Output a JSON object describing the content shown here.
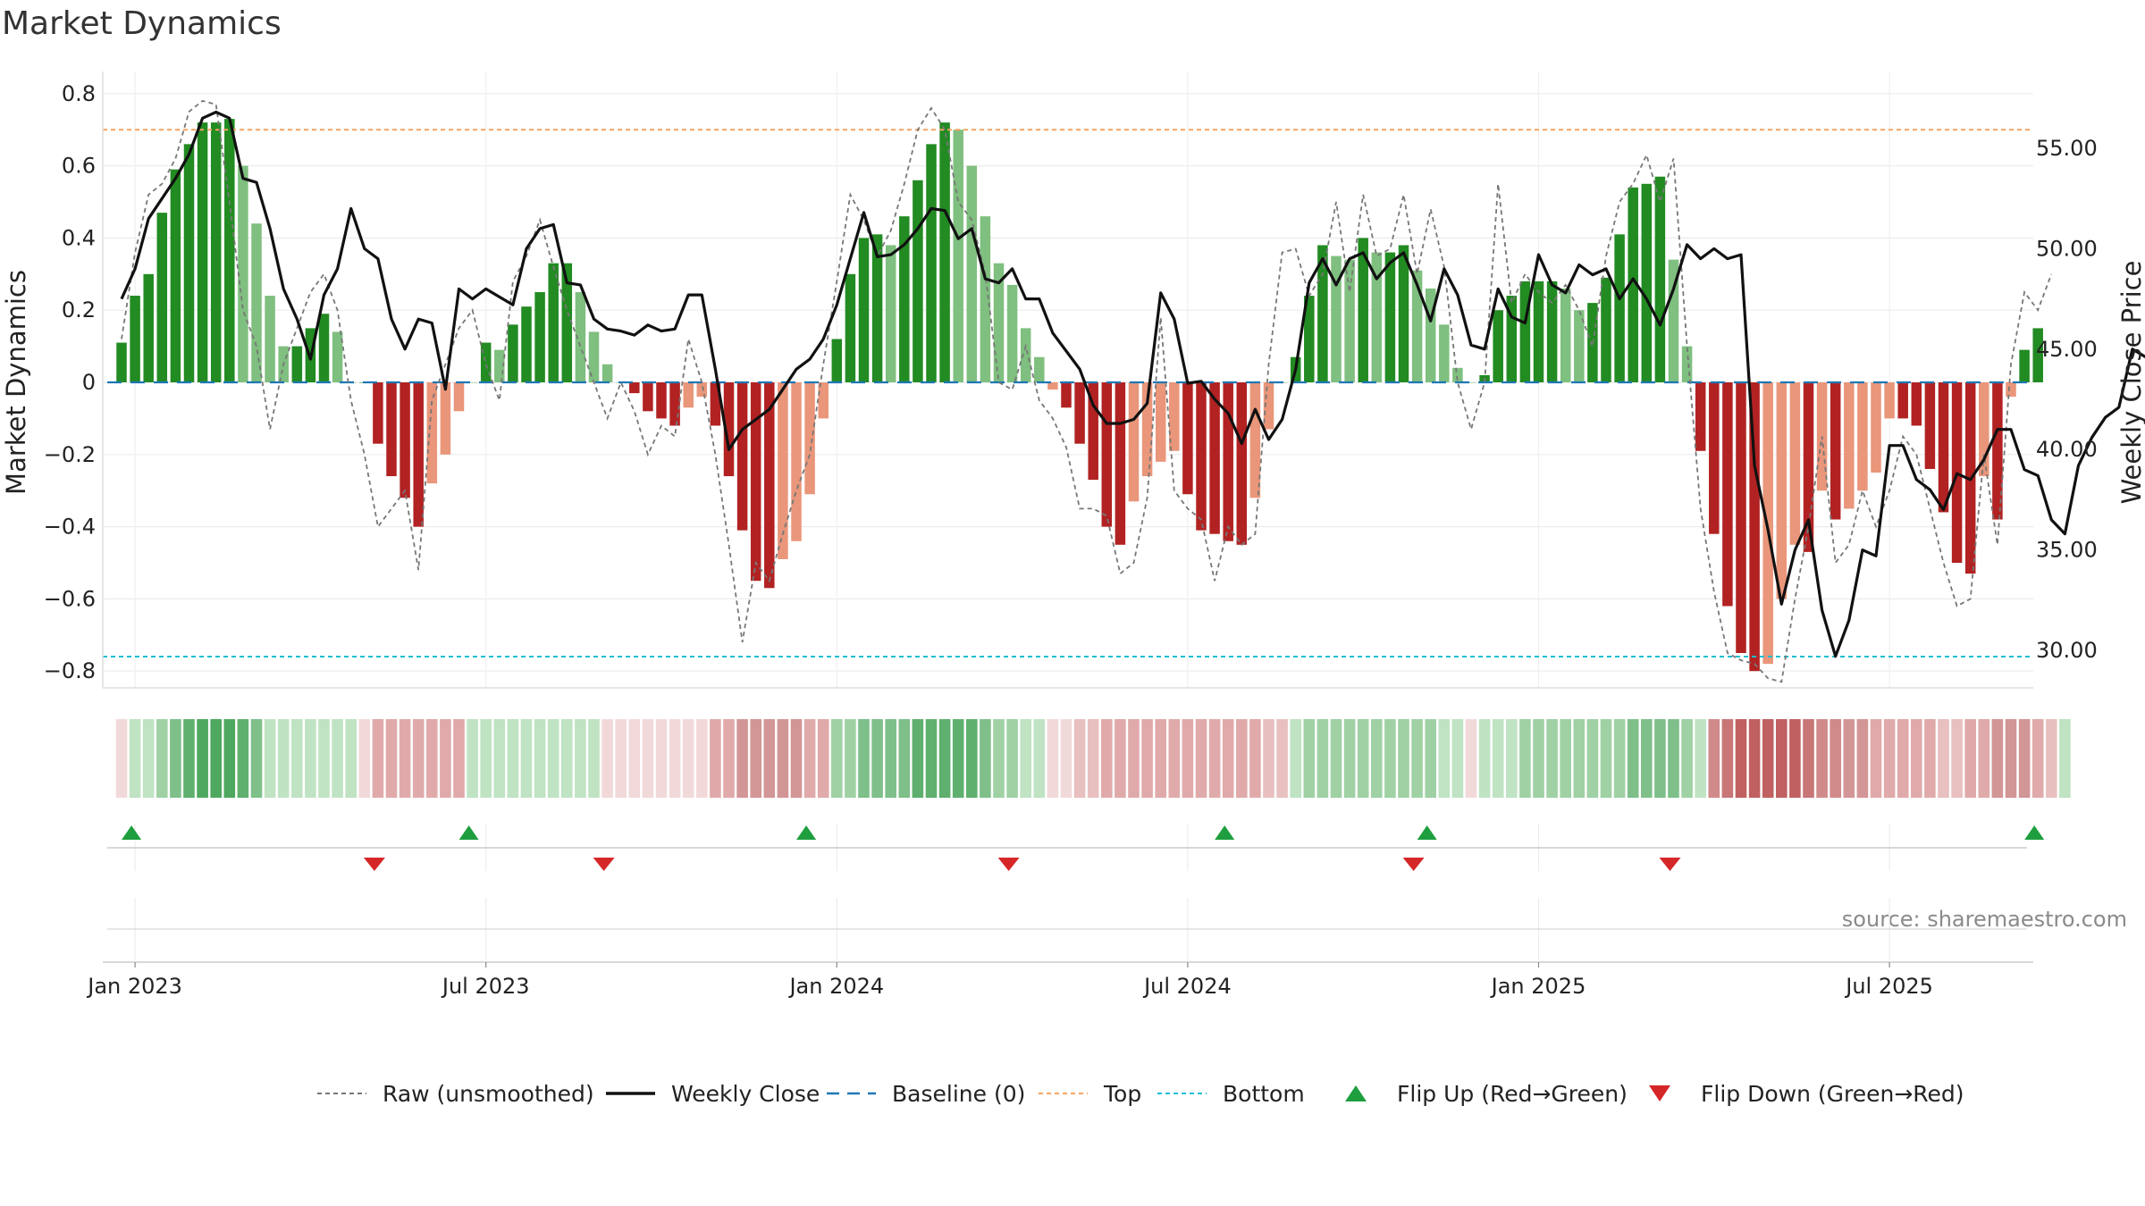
{
  "page": {
    "title": "Market Dynamics",
    "source": "source: sharemaestro.com"
  },
  "colors": {
    "green_strong": "#228B22",
    "green_light": "#7FBF7F",
    "red_strong": "#B22222",
    "red_light": "#E9967A",
    "raw": "#777777",
    "close": "#111111",
    "baseline": "#1f77b4",
    "top": "#F4A460",
    "bottom": "#17BECF",
    "flip_up": "#1E9E3E",
    "flip_down": "#D62728"
  },
  "chart_data": {
    "type": "bar",
    "title": "Market Dynamics",
    "ylabel": "Market Dynamics",
    "ylabel_right": "Weekly Close Price",
    "ylim": [
      -0.85,
      0.85
    ],
    "ylim_right": [
      27.5,
      59.2
    ],
    "y_ticks": [
      0.8,
      0.6,
      0.4,
      0.2,
      0,
      -0.2,
      -0.4,
      -0.6,
      -0.8
    ],
    "y_tick_labels": [
      "0.8",
      "0.6",
      "0.4",
      "0.2",
      "0",
      "−0.2",
      "−0.4",
      "−0.6",
      "−0.8"
    ],
    "y_right_ticks": [
      55,
      50,
      45,
      40,
      35,
      30
    ],
    "y_right_tick_labels": [
      "55.00",
      "50.00",
      "45.00",
      "40.00",
      "35.00",
      "30.00"
    ],
    "x_tick_labels": [
      "Jan 2023",
      "Jul 2023",
      "Jan 2024",
      "Jul 2024",
      "Jan 2025",
      "Jul 2025"
    ],
    "x_tick_weeks": [
      1,
      27,
      53,
      79,
      105,
      131
    ],
    "top_level": 0.7,
    "bottom_level": -0.76,
    "grid": true,
    "legend_position": "bottom",
    "legend": [
      "Raw (unsmoothed)",
      "Weekly Close",
      "Baseline (0)",
      "Top",
      "Bottom",
      "Flip Up (Red→Green)",
      "Flip Down (Green→Red)"
    ],
    "mdyn": [
      0.11,
      0.24,
      0.3,
      0.47,
      0.59,
      0.66,
      0.72,
      0.72,
      0.73,
      0.6,
      0.44,
      0.24,
      0.1,
      0.1,
      0.15,
      0.19,
      0.14,
      0,
      0,
      -0.17,
      -0.26,
      -0.32,
      -0.4,
      -0.28,
      -0.2,
      -0.08,
      0,
      0.11,
      0.09,
      0.16,
      0.21,
      0.25,
      0.33,
      0.33,
      0.25,
      0.14,
      0.05,
      0,
      -0.03,
      -0.08,
      -0.1,
      -0.12,
      -0.07,
      -0.04,
      -0.12,
      -0.26,
      -0.41,
      -0.55,
      -0.57,
      -0.49,
      -0.44,
      -0.31,
      -0.1,
      0.12,
      0.3,
      0.4,
      0.41,
      0.38,
      0.46,
      0.56,
      0.66,
      0.72,
      0.7,
      0.6,
      0.46,
      0.33,
      0.27,
      0.15,
      0.07,
      -0.02,
      -0.07,
      -0.17,
      -0.27,
      -0.4,
      -0.45,
      -0.33,
      -0.26,
      -0.22,
      -0.19,
      -0.31,
      -0.41,
      -0.42,
      -0.44,
      -0.45,
      -0.32,
      -0.13,
      0,
      0.07,
      0.24,
      0.38,
      0.35,
      0.34,
      0.4,
      0.36,
      0.36,
      0.38,
      0.31,
      0.26,
      0.16,
      0.04,
      0,
      0.02,
      0.2,
      0.24,
      0.28,
      0.28,
      0.28,
      0.26,
      0.2,
      0.22,
      0.29,
      0.41,
      0.54,
      0.55,
      0.57,
      0.34,
      0.1,
      -0.19,
      -0.42,
      -0.62,
      -0.75,
      -0.8,
      -0.78,
      -0.6,
      -0.45,
      -0.47,
      -0.3,
      -0.38,
      -0.35,
      -0.3,
      -0.25,
      -0.1,
      -0.1,
      -0.12,
      -0.24,
      -0.36,
      -0.5,
      -0.53,
      -0.26,
      -0.38,
      -0.04,
      0.09,
      0.15
    ],
    "raw": [
      0.12,
      0.36,
      0.52,
      0.55,
      0.62,
      0.75,
      0.78,
      0.77,
      0.5,
      0.2,
      0.1,
      -0.13,
      0.05,
      0.15,
      0.25,
      0.3,
      0.2,
      -0.05,
      -0.2,
      -0.4,
      -0.35,
      -0.3,
      -0.52,
      -0.05,
      0.05,
      0.15,
      0.2,
      0.05,
      -0.05,
      0.28,
      0.35,
      0.45,
      0.32,
      0.2,
      0.1,
      0,
      -0.1,
      0,
      -0.08,
      -0.2,
      -0.12,
      -0.15,
      0.12,
      0,
      -0.2,
      -0.45,
      -0.72,
      -0.5,
      -0.55,
      -0.42,
      -0.3,
      -0.2,
      0.05,
      0.28,
      0.52,
      0.45,
      0.35,
      0.42,
      0.55,
      0.7,
      0.76,
      0.7,
      0.5,
      0.45,
      0.3,
      0,
      -0.02,
      0.1,
      -0.05,
      -0.1,
      -0.18,
      -0.35,
      -0.35,
      -0.37,
      -0.53,
      -0.5,
      -0.32,
      0.18,
      -0.3,
      -0.35,
      -0.38,
      -0.55,
      -0.4,
      -0.45,
      -0.42,
      0.05,
      0.36,
      0.37,
      0.24,
      0.3,
      0.5,
      0.25,
      0.52,
      0.35,
      0.37,
      0.52,
      0.3,
      0.48,
      0.32,
      0,
      -0.13,
      0,
      0.55,
      0.22,
      0.3,
      0.25,
      0.22,
      0.27,
      0.2,
      0.1,
      0.35,
      0.5,
      0.55,
      0.63,
      0.5,
      0.62,
      0.1,
      -0.35,
      -0.58,
      -0.75,
      -0.77,
      -0.78,
      -0.82,
      -0.83,
      -0.6,
      -0.4,
      -0.15,
      -0.5,
      -0.45,
      -0.3,
      -0.4,
      -0.3,
      -0.15,
      -0.2,
      -0.35,
      -0.5,
      -0.62,
      -0.6,
      -0.2,
      -0.45,
      0.05,
      0.25,
      0.2,
      0.3
    ],
    "close": [
      47.5,
      49,
      51.5,
      52.5,
      53.5,
      54.7,
      56.5,
      56.8,
      56.5,
      53.5,
      53.3,
      51,
      48,
      46.5,
      44.5,
      47.7,
      49,
      52,
      50,
      49.5,
      46.5,
      45,
      46.5,
      46.3,
      43,
      48,
      47.5,
      48,
      47.6,
      47.2,
      50,
      51,
      51.2,
      48.3,
      48.2,
      46.5,
      46,
      45.9,
      45.7,
      46.2,
      45.9,
      46,
      47.7,
      47.7,
      44,
      40,
      41,
      41.5,
      42,
      43,
      44,
      44.5,
      45.5,
      47.2,
      49.5,
      51.8,
      49.6,
      49.7,
      50.2,
      51,
      52,
      51.9,
      50.5,
      51,
      48.5,
      48.3,
      49,
      47.5,
      47.5,
      45.8,
      44.9,
      44,
      42.2,
      41.3,
      41.3,
      41.5,
      42.3,
      47.8,
      46.5,
      43.3,
      43.4,
      42.5,
      41.8,
      40.3,
      42,
      40.5,
      41.5,
      44,
      48.3,
      49.5,
      48.2,
      49.5,
      49.8,
      48.5,
      49.3,
      49.8,
      48.2,
      46.4,
      49,
      47.7,
      45.2,
      45,
      48,
      46.6,
      46.3,
      49.7,
      48.2,
      47.8,
      49.2,
      48.7,
      49,
      47.5,
      48.5,
      47.5,
      46.2,
      48,
      50.2,
      49.5,
      50,
      49.5,
      49.7,
      39.2,
      36,
      32.3,
      35,
      36.5,
      32,
      29.7,
      31.5,
      35,
      34.7,
      40.2,
      40.2,
      38.5,
      38,
      37,
      38.8,
      38.5,
      39.5,
      41,
      41,
      39,
      38.7,
      36.5,
      35.8,
      39.2,
      40.6,
      41.6,
      42.1,
      45,
      44.6,
      45.7
    ]
  },
  "strength_band": {
    "colors": [
      "#F2D9D9",
      "#BFE3C3",
      "#BFE3C3",
      "#9FD1A5",
      "#7FBF8A",
      "#5FB06E",
      "#4EA85F",
      "#4EA85F",
      "#4EA85F",
      "#5FB06E",
      "#7FBF8A",
      "#BFE3C3",
      "#BFE3C3",
      "#BFE3C3",
      "#BFE3C3",
      "#BFE3C3",
      "#BFE3C3",
      "#BFE3C3",
      "#F2D9D9",
      "#E0AAAA",
      "#E0AAAA",
      "#E0AAAA",
      "#E0AAAA",
      "#E0AAAA",
      "#E0AAAA",
      "#E0AAAA",
      "#BFE3C3",
      "#BFE3C3",
      "#BFE3C3",
      "#BFE3C3",
      "#BFE3C3",
      "#BFE3C3",
      "#BFE3C3",
      "#BFE3C3",
      "#BFE3C3",
      "#BFE3C3",
      "#F2D9D9",
      "#F2D9D9",
      "#F2D9D9",
      "#F2D9D9",
      "#F2D9D9",
      "#F2D9D9",
      "#F2D9D9",
      "#F2D9D9",
      "#E0AAAA",
      "#E0AAAA",
      "#D39696",
      "#D39696",
      "#D39696",
      "#D39696",
      "#D39696",
      "#E0AAAA",
      "#E0AAAA",
      "#9FD1A5",
      "#9FD1A5",
      "#7FBF8A",
      "#7FBF8A",
      "#7FBF8A",
      "#7FBF8A",
      "#5FB06E",
      "#5FB06E",
      "#5FB06E",
      "#5FB06E",
      "#5FB06E",
      "#7FBF8A",
      "#9FD1A5",
      "#9FD1A5",
      "#BFE3C3",
      "#BFE3C3",
      "#F2D9D9",
      "#F2D9D9",
      "#E8C0C0",
      "#E8C0C0",
      "#E0AAAA",
      "#E0AAAA",
      "#E0AAAA",
      "#E0AAAA",
      "#E0AAAA",
      "#E0AAAA",
      "#E0AAAA",
      "#E0AAAA",
      "#E0AAAA",
      "#E0AAAA",
      "#E0AAAA",
      "#E0AAAA",
      "#E8C0C0",
      "#E8C0C0",
      "#BFE3C3",
      "#9FD1A5",
      "#9FD1A5",
      "#9FD1A5",
      "#9FD1A5",
      "#9FD1A5",
      "#9FD1A5",
      "#9FD1A5",
      "#9FD1A5",
      "#9FD1A5",
      "#9FD1A5",
      "#BFE3C3",
      "#BFE3C3",
      "#F2D9D9",
      "#BFE3C3",
      "#BFE3C3",
      "#BFE3C3",
      "#9FD1A5",
      "#9FD1A5",
      "#9FD1A5",
      "#9FD1A5",
      "#9FD1A5",
      "#9FD1A5",
      "#9FD1A5",
      "#9FD1A5",
      "#7FBF8A",
      "#7FBF8A",
      "#7FBF8A",
      "#7FBF8A",
      "#9FD1A5",
      "#BFE3C3",
      "#D08A8A",
      "#C87676",
      "#C06060",
      "#C06060",
      "#C06060",
      "#C06060",
      "#C06060",
      "#C87676",
      "#D08A8A",
      "#D08A8A",
      "#D39696",
      "#D39696",
      "#E0AAAA",
      "#E0AAAA",
      "#E0AAAA",
      "#E0AAAA",
      "#E0AAAA",
      "#E8C0C0",
      "#E8C0C0",
      "#E0AAAA",
      "#E0AAAA",
      "#D39696",
      "#D39696",
      "#D39696",
      "#E0AAAA",
      "#E8C0C0",
      "#BFE3C3"
    ]
  },
  "flips": {
    "up_weeks": [
      1,
      26,
      51,
      82,
      97,
      142
    ],
    "down_weeks": [
      19,
      36,
      66,
      96,
      115
    ]
  }
}
